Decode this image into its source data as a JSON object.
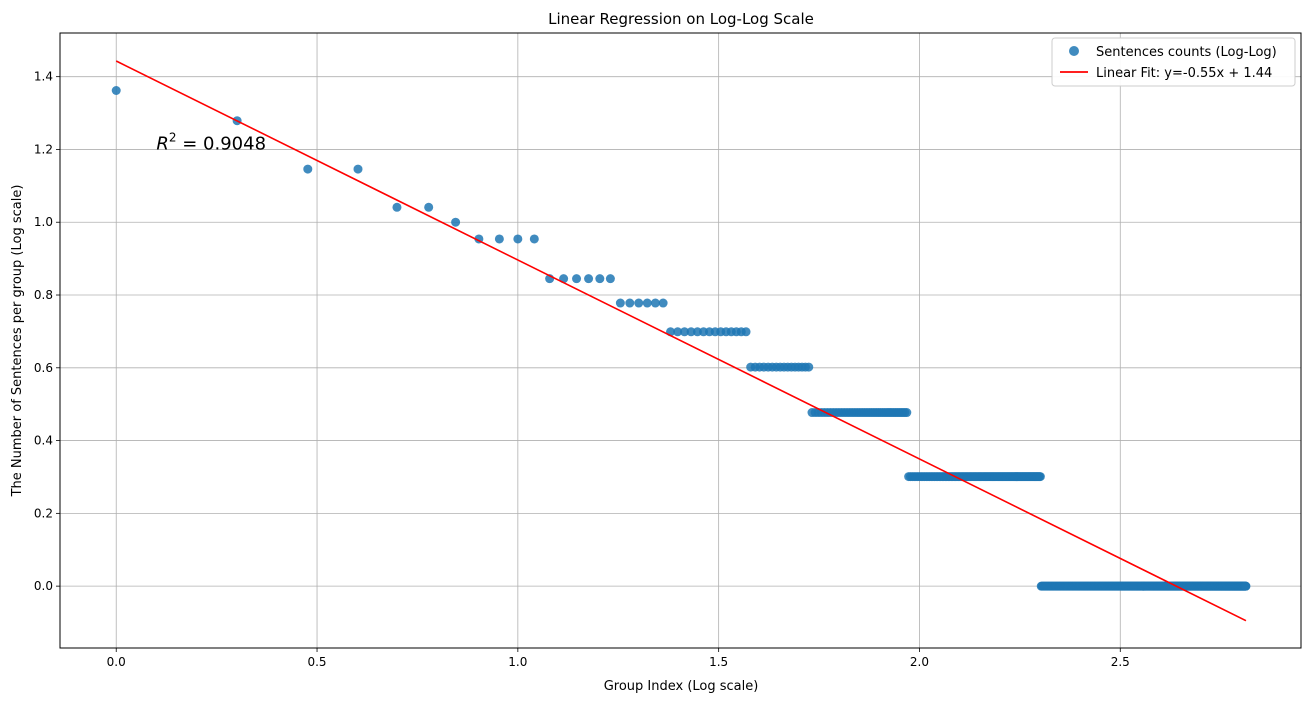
{
  "chart_data": {
    "type": "scatter",
    "title": "Linear Regression on Log-Log Scale",
    "xlabel": "Group Index (Log scale)",
    "ylabel": "The Number of Sentences per group (Log scale)",
    "xlim": [
      -0.14,
      2.95
    ],
    "ylim": [
      -0.17,
      1.52
    ],
    "xticks": [
      0.0,
      0.5,
      1.0,
      1.5,
      2.0,
      2.5
    ],
    "xtick_labels": [
      "0.0",
      "0.5",
      "1.0",
      "1.5",
      "2.0",
      "2.5"
    ],
    "yticks": [
      0.0,
      0.2,
      0.4,
      0.6,
      0.8,
      1.0,
      1.2,
      1.4
    ],
    "ytick_labels": [
      "0.0",
      "0.2",
      "0.4",
      "0.6",
      "0.8",
      "1.0",
      "1.2",
      "1.4"
    ],
    "grid": true,
    "legend_position": "top-right",
    "annotation": {
      "text_base": "R",
      "text_sup": "2",
      "text_rest": " = 0.9048",
      "x": 0.1,
      "y": 1.2
    },
    "scatter_series": {
      "name": "Sentences counts (Log-Log)",
      "color": "#1f77b4",
      "x": [
        0.0,
        0.301,
        0.477,
        0.602,
        0.699,
        0.778,
        0.845,
        0.903,
        0.954,
        1.0,
        1.041
      ],
      "y": [
        1.362,
        1.279,
        1.146,
        1.146,
        1.041,
        1.041,
        1.0,
        0.954,
        0.954,
        0.954,
        0.954
      ],
      "dense_groups": [
        {
          "y": 0.845,
          "start_index": 12,
          "end_index": 17
        },
        {
          "y": 0.778,
          "start_index": 18,
          "end_index": 23
        },
        {
          "y": 0.699,
          "start_index": 24,
          "end_index": 37
        },
        {
          "y": 0.602,
          "start_index": 38,
          "end_index": 53
        },
        {
          "y": 0.477,
          "start_index": 54,
          "end_index": 93
        },
        {
          "y": 0.301,
          "start_index": 94,
          "end_index": 200
        },
        {
          "y": 0.0,
          "start_index": 201,
          "end_index": 650
        }
      ]
    },
    "fit_series": {
      "name": "Linear Fit: y=-0.55x + 1.44",
      "color": "#ff0000",
      "x": [
        0.0,
        2.813
      ],
      "y": [
        1.443,
        -0.095
      ]
    }
  }
}
